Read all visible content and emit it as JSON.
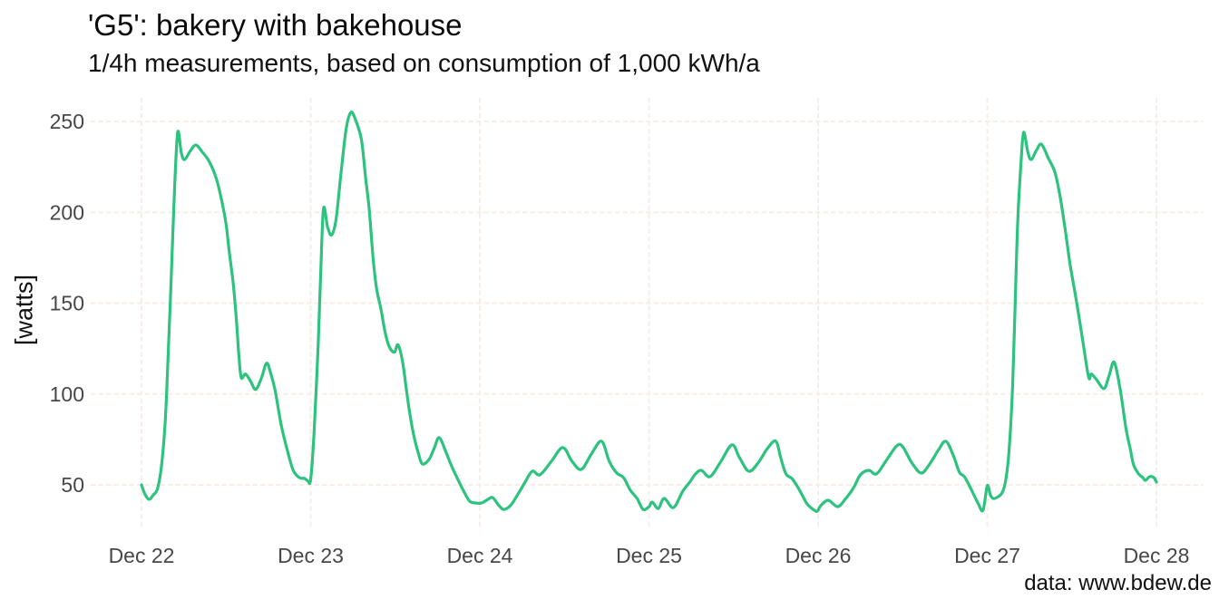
{
  "chart": {
    "title": "'G5': bakery with bakehouse",
    "subtitle": "1/4h measurements, based on consumption of 1,000 kWh/a",
    "y_axis_label": "[watts]",
    "caption": "data: www.bdew.de"
  },
  "chart_data": {
    "type": "line",
    "title": "'G5': bakery with bakehouse",
    "subtitle": "1/4h measurements, based on consumption of 1,000 kWh/a",
    "xlabel": "",
    "ylabel": "[watts]",
    "caption": "data: www.bdew.de",
    "x_unit": "days since Dec 22 (quarter-hourly load profile)",
    "x_tick_positions": [
      0,
      1,
      2,
      3,
      4,
      5,
      6
    ],
    "x_tick_labels": [
      "Dec 22",
      "Dec 23",
      "Dec 24",
      "Dec 25",
      "Dec 26",
      "Dec 27",
      "Dec 28"
    ],
    "y_ticks": [
      50,
      100,
      150,
      200,
      250
    ],
    "ylim": [
      27,
      263
    ],
    "xlim": [
      -0.3,
      6.27
    ],
    "grid": {
      "style": "dashed",
      "horizontal": true,
      "vertical": true
    },
    "legend": "none",
    "colors": {
      "line": "#2EC27F",
      "grid": "#F8EDE7",
      "tick_text": "#474747",
      "title_text": "#0B0B0B",
      "background": "#FFFFFF"
    },
    "points": [
      [
        0.0,
        50
      ],
      [
        0.02,
        45
      ],
      [
        0.045,
        42
      ],
      [
        0.07,
        44.5
      ],
      [
        0.095,
        48
      ],
      [
        0.12,
        62
      ],
      [
        0.141,
        86
      ],
      [
        0.161,
        129
      ],
      [
        0.177,
        167
      ],
      [
        0.195,
        212
      ],
      [
        0.214,
        244
      ],
      [
        0.235,
        233
      ],
      [
        0.254,
        229
      ],
      [
        0.29,
        234
      ],
      [
        0.322,
        237
      ],
      [
        0.361,
        233
      ],
      [
        0.4,
        228
      ],
      [
        0.441,
        219
      ],
      [
        0.473,
        207
      ],
      [
        0.499,
        194
      ],
      [
        0.518,
        179
      ],
      [
        0.542,
        161
      ],
      [
        0.561,
        141
      ],
      [
        0.576,
        121
      ],
      [
        0.59,
        109
      ],
      [
        0.615,
        111
      ],
      [
        0.645,
        107
      ],
      [
        0.675,
        102.5
      ],
      [
        0.71,
        109
      ],
      [
        0.74,
        117
      ],
      [
        0.765,
        111
      ],
      [
        0.79,
        102
      ],
      [
        0.826,
        83
      ],
      [
        0.862,
        69
      ],
      [
        0.897,
        58
      ],
      [
        0.933,
        54
      ],
      [
        0.965,
        53.5
      ],
      [
        0.985,
        52
      ],
      [
        1.0,
        53
      ],
      [
        1.02,
        78
      ],
      [
        1.045,
        128
      ],
      [
        1.06,
        168
      ],
      [
        1.076,
        202
      ],
      [
        1.1,
        192
      ],
      [
        1.124,
        187.5
      ],
      [
        1.15,
        196
      ],
      [
        1.18,
        222
      ],
      [
        1.21,
        246
      ],
      [
        1.238,
        255
      ],
      [
        1.265,
        251
      ],
      [
        1.3,
        240
      ],
      [
        1.325,
        219
      ],
      [
        1.346,
        202
      ],
      [
        1.37,
        174
      ],
      [
        1.39,
        158
      ],
      [
        1.415,
        147
      ],
      [
        1.44,
        134
      ],
      [
        1.465,
        126
      ],
      [
        1.495,
        123
      ],
      [
        1.517,
        127
      ],
      [
        1.545,
        117
      ],
      [
        1.565,
        103
      ],
      [
        1.585,
        90
      ],
      [
        1.61,
        77
      ],
      [
        1.635,
        68
      ],
      [
        1.66,
        61.5
      ],
      [
        1.7,
        64
      ],
      [
        1.73,
        70
      ],
      [
        1.76,
        76
      ],
      [
        1.8,
        68
      ],
      [
        1.83,
        61
      ],
      [
        1.87,
        53
      ],
      [
        1.905,
        46.5
      ],
      [
        1.94,
        41
      ],
      [
        1.975,
        40
      ],
      [
        2.01,
        40
      ],
      [
        2.04,
        41.5
      ],
      [
        2.075,
        43
      ],
      [
        2.11,
        39
      ],
      [
        2.14,
        36.5
      ],
      [
        2.18,
        38.5
      ],
      [
        2.22,
        44
      ],
      [
        2.265,
        51
      ],
      [
        2.31,
        57.5
      ],
      [
        2.355,
        55.5
      ],
      [
        2.42,
        62.5
      ],
      [
        2.49,
        70.5
      ],
      [
        2.545,
        63
      ],
      [
        2.6,
        58.5
      ],
      [
        2.66,
        67
      ],
      [
        2.72,
        74
      ],
      [
        2.765,
        63
      ],
      [
        2.81,
        56.5
      ],
      [
        2.85,
        54
      ],
      [
        2.89,
        47
      ],
      [
        2.93,
        42.5
      ],
      [
        2.965,
        36.5
      ],
      [
        3.0,
        38
      ],
      [
        3.02,
        40.5
      ],
      [
        3.055,
        37
      ],
      [
        3.09,
        42.5
      ],
      [
        3.145,
        37.5
      ],
      [
        3.2,
        46.5
      ],
      [
        3.245,
        52
      ],
      [
        3.275,
        56
      ],
      [
        3.31,
        58
      ],
      [
        3.36,
        54.5
      ],
      [
        3.42,
        62
      ],
      [
        3.49,
        72
      ],
      [
        3.535,
        65
      ],
      [
        3.59,
        57.5
      ],
      [
        3.645,
        62
      ],
      [
        3.7,
        70
      ],
      [
        3.75,
        74
      ],
      [
        3.78,
        64.5
      ],
      [
        3.81,
        56
      ],
      [
        3.845,
        53.5
      ],
      [
        3.875,
        49.5
      ],
      [
        3.905,
        44.5
      ],
      [
        3.935,
        39.5
      ],
      [
        3.97,
        36.5
      ],
      [
        3.995,
        35.5
      ],
      [
        4.015,
        38.5
      ],
      [
        4.06,
        41.5
      ],
      [
        4.115,
        38
      ],
      [
        4.16,
        42
      ],
      [
        4.21,
        48.5
      ],
      [
        4.25,
        55.5
      ],
      [
        4.3,
        58
      ],
      [
        4.345,
        56
      ],
      [
        4.4,
        63
      ],
      [
        4.465,
        71.5
      ],
      [
        4.5,
        71
      ],
      [
        4.555,
        62
      ],
      [
        4.61,
        56.5
      ],
      [
        4.66,
        61.5
      ],
      [
        4.71,
        69
      ],
      [
        4.755,
        74
      ],
      [
        4.8,
        66
      ],
      [
        4.835,
        57
      ],
      [
        4.865,
        54.5
      ],
      [
        4.9,
        48.5
      ],
      [
        4.945,
        40
      ],
      [
        4.975,
        36
      ],
      [
        5.0,
        49.5
      ],
      [
        5.018,
        44.5
      ],
      [
        5.035,
        42.5
      ],
      [
        5.065,
        43.5
      ],
      [
        5.09,
        46
      ],
      [
        5.11,
        53
      ],
      [
        5.13,
        70
      ],
      [
        5.15,
        105
      ],
      [
        5.165,
        150
      ],
      [
        5.18,
        195
      ],
      [
        5.2,
        228
      ],
      [
        5.215,
        244
      ],
      [
        5.24,
        233
      ],
      [
        5.26,
        229
      ],
      [
        5.29,
        234
      ],
      [
        5.32,
        237.5
      ],
      [
        5.36,
        230
      ],
      [
        5.4,
        222
      ],
      [
        5.43,
        209
      ],
      [
        5.46,
        191
      ],
      [
        5.49,
        171
      ],
      [
        5.52,
        155
      ],
      [
        5.545,
        141
      ],
      [
        5.57,
        126
      ],
      [
        5.6,
        109
      ],
      [
        5.615,
        111
      ],
      [
        5.645,
        108
      ],
      [
        5.69,
        103
      ],
      [
        5.72,
        110
      ],
      [
        5.75,
        117.5
      ],
      [
        5.785,
        103
      ],
      [
        5.82,
        81
      ],
      [
        5.845,
        70
      ],
      [
        5.865,
        61
      ],
      [
        5.895,
        56
      ],
      [
        5.92,
        54
      ],
      [
        5.935,
        52.5
      ],
      [
        5.96,
        54.5
      ],
      [
        5.985,
        54
      ],
      [
        6.0,
        51.5
      ]
    ]
  }
}
